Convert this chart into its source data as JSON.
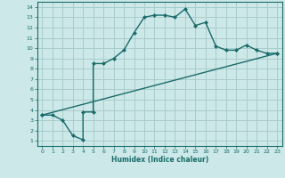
{
  "xlabel": "Humidex (Indice chaleur)",
  "bg_color": "#cce8e8",
  "line_color": "#1a6b6b",
  "grid_color": "#aacccc",
  "xlim": [
    -0.5,
    23.5
  ],
  "ylim": [
    0.5,
    14.5
  ],
  "xticks": [
    0,
    1,
    2,
    3,
    4,
    5,
    6,
    7,
    8,
    9,
    10,
    11,
    12,
    13,
    14,
    15,
    16,
    17,
    18,
    19,
    20,
    21,
    22,
    23
  ],
  "yticks": [
    1,
    2,
    3,
    4,
    5,
    6,
    7,
    8,
    9,
    10,
    11,
    12,
    13,
    14
  ],
  "curve1_x": [
    0,
    1,
    2,
    3,
    4,
    4,
    5,
    5,
    6,
    7,
    8,
    9,
    10,
    11,
    12,
    13,
    14,
    15,
    16,
    17,
    18,
    19,
    20,
    21,
    22,
    23
  ],
  "curve1_y": [
    3.5,
    3.5,
    3.0,
    1.5,
    1.1,
    3.8,
    3.8,
    8.5,
    8.5,
    9.0,
    9.8,
    11.5,
    13.0,
    13.2,
    13.2,
    13.0,
    13.8,
    12.2,
    12.5,
    10.2,
    9.8,
    9.8,
    10.3,
    9.8,
    9.5,
    9.5
  ],
  "curve2_x": [
    0,
    23
  ],
  "curve2_y": [
    3.5,
    9.5
  ],
  "marker": "D",
  "markersize": 2.5,
  "linewidth": 1.0
}
